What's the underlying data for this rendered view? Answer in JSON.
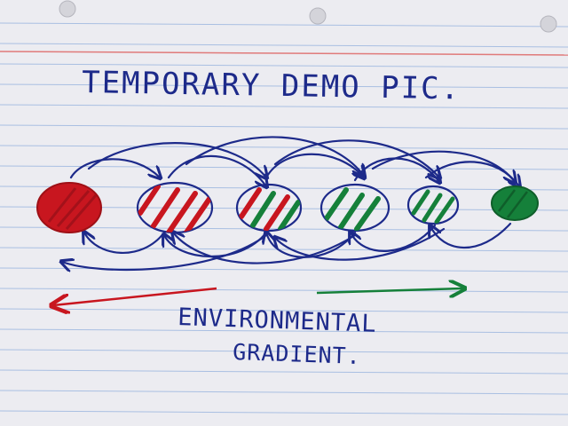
{
  "title": "TEMPORARY DEMO PIC.",
  "axis_label_line1": "ENVIRONMENTAL",
  "axis_label_line2": "GRADIENT.",
  "colors": {
    "paper": "#ececf1",
    "rule_line": "#a9bfe2",
    "margin_line": "#e07a7a",
    "ink_blue": "#1d2a8a",
    "red": "#c8161f",
    "green": "#15803a"
  },
  "nodes": [
    {
      "id": "node-1",
      "fill": "solid-red"
    },
    {
      "id": "node-2",
      "fill": "red-hatch"
    },
    {
      "id": "node-3",
      "fill": "red-green-hatch"
    },
    {
      "id": "node-4",
      "fill": "green-hatch"
    },
    {
      "id": "node-5",
      "fill": "green-hatch-light"
    },
    {
      "id": "node-6",
      "fill": "solid-green"
    }
  ]
}
